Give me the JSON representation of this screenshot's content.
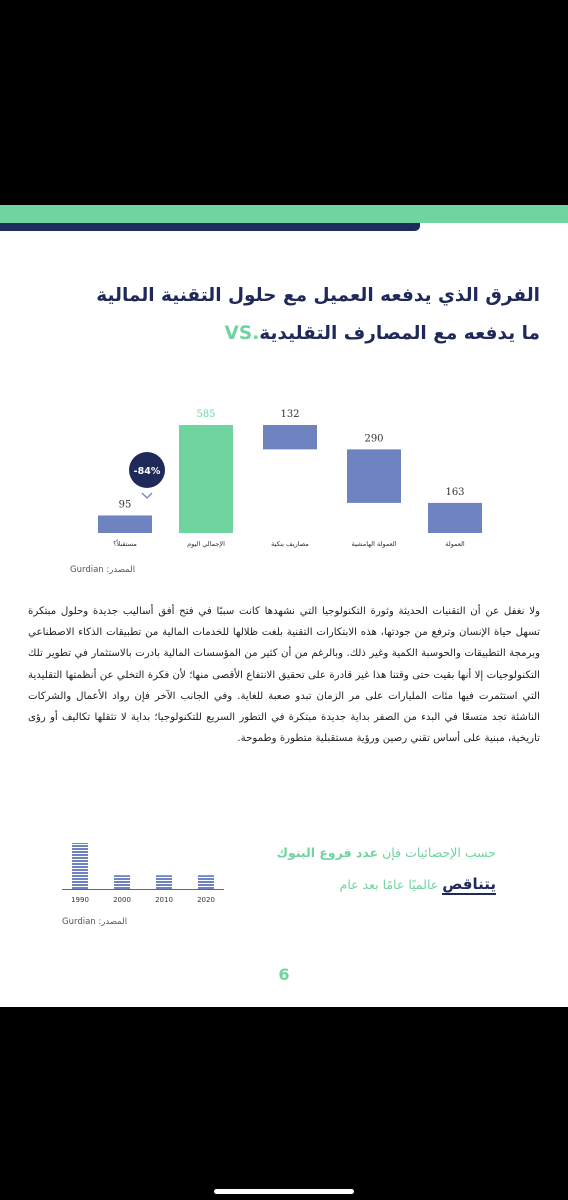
{
  "title": {
    "line1": "الفرق الذي يدفعه العميل مع حلول التقنية المالية",
    "line2_vs": "VS.",
    "line2_text": " ما يدفعه مع المصارف التقليدية"
  },
  "chart_data": {
    "type": "bar",
    "subtype": "waterfall",
    "categories": [
      "مستقبلاً؟",
      "الإجمالي اليوم",
      "مصاريف بنكية",
      "العمولة الهامشية",
      "العمولة"
    ],
    "values": [
      95,
      585,
      132,
      290,
      163
    ],
    "badge": "-84%",
    "colors": {
      "primary": "#6f83c0",
      "total": "#6fd4a0",
      "text": "#1f2a5a"
    }
  },
  "chart_source": "المصدر: Gurdian",
  "body": "ولا نغفل عن أن التقنيات الحديثة وثورة التكنولوجيا التي نشهدها كانت سببًا في فتح أفق أساليب جديدة وحلول مبتكرة تسهل حياة الإنسان وترفع من جودتها، هذه الابتكارات التقنية بلغت ظلالها للخدمات المالية من تطبيقات الذكاء الاصطناعي وبرمجة التطبيقات والحوسبة الكمية وغير ذلك. وبالرغم من أن كثير من المؤسسات المالية بادرت بالاستثمار في تطوير تلك التكنولوجيات إلا أنها بقيت حتى وقتنا هذا غير قادرة على تحقيق الانتفاع الأقصى منها؛ لأن فكرة التخلي عن أنظمتها التقليدية التي استثمرت فيها مئات المليارات على مر الزمان تبدو صعبة للغاية. وفي الجانب الآخر فإن رواد الأعمال والشركات الناشئة تجد متسعًا في البدء من الصفر بداية جديدة مبتكرة في التطور السريع للتكنولوجيا؛ بداية لا تثقلها تكاليف أو رؤى تاريخية، مبنية على أساس تقني رصين ورؤية مستقبلية متطورة وطموحة.",
  "stat": {
    "prefix": "حسب الإحصائيات فإن ",
    "highlight": "عدد فروع البنوك",
    "verb": "يتناقص",
    "suffix": " عالميًا عامًا بعد عام"
  },
  "mini_chart_data": {
    "type": "bar",
    "categories": [
      "1990",
      "2000",
      "2010",
      "2020"
    ],
    "values": [
      100,
      30,
      30,
      30
    ]
  },
  "mini_source": "المصدر: Gurdian",
  "page_number": "6"
}
